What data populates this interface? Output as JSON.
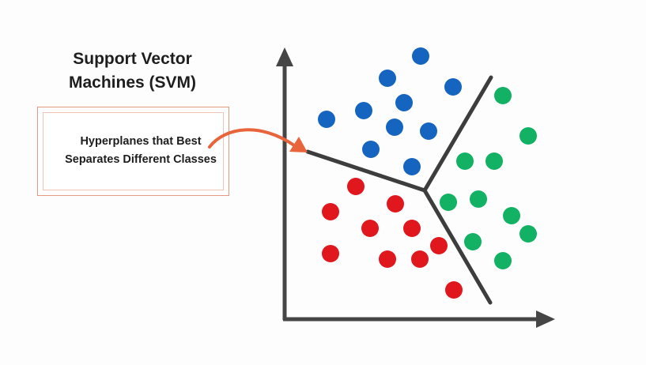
{
  "title": {
    "line1": "Support Vector",
    "line2": "Machines (SVM)"
  },
  "callout": {
    "line1": "Hyperplanes that Best",
    "line2": "Separates Different Classes"
  },
  "colors": {
    "class_a": "#1565c0",
    "class_b": "#e0171d",
    "class_c": "#12b163",
    "axis": "#454545",
    "hyperplane": "#3d3d3d",
    "arrow": "#e8643a"
  },
  "classes": [
    {
      "id": "class_a",
      "color": "#1565c0"
    },
    {
      "id": "class_b",
      "color": "#e0171d"
    },
    {
      "id": "class_c",
      "color": "#12b163"
    }
  ]
}
